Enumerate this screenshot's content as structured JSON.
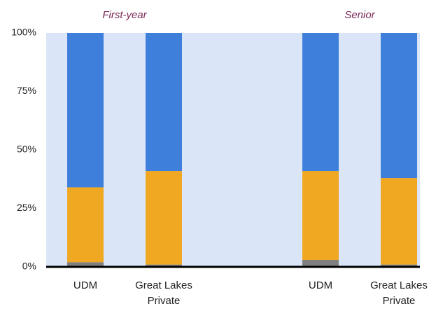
{
  "chart_data": {
    "type": "stacked_bar",
    "groups": [
      "First-year",
      "Senior"
    ],
    "categories": [
      "UDM",
      "Great Lakes Private",
      "UDM",
      "Great Lakes Private"
    ],
    "series": [
      {
        "color": "#7f7f7f",
        "values": [
          2,
          1,
          3,
          1
        ]
      },
      {
        "color": "#f0a823",
        "values": [
          32,
          40,
          38,
          37
        ]
      },
      {
        "color": "#3f7fdc",
        "values": [
          66,
          59,
          59,
          62
        ]
      }
    ],
    "ylim": [
      0,
      100
    ],
    "yticks": [
      {
        "value": 0,
        "label": "0%"
      },
      {
        "value": 25,
        "label": "25%"
      },
      {
        "value": 50,
        "label": "50%"
      },
      {
        "value": 75,
        "label": "75%"
      },
      {
        "value": 100,
        "label": "100%"
      }
    ]
  }
}
